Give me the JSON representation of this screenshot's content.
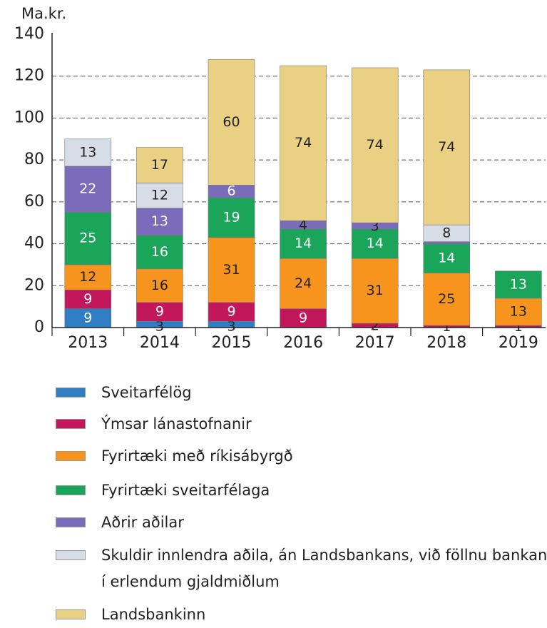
{
  "chart_data": {
    "type": "stacked_bar",
    "y_axis_label": "Ma.kr.",
    "categories": [
      "2013",
      "2014",
      "2015",
      "2016",
      "2017",
      "2018",
      "2019"
    ],
    "ylim": [
      0,
      140
    ],
    "yticks": [
      0,
      20,
      40,
      60,
      80,
      100,
      120,
      140
    ],
    "grid": true,
    "series": [
      {
        "name": "Sveitarfélög",
        "color": "#2f7dc3",
        "values": [
          9,
          3,
          3,
          0,
          0,
          0,
          0
        ],
        "value_labels": [
          "9",
          "3",
          "3",
          null,
          null,
          null,
          null
        ]
      },
      {
        "name": "Ýmsar lánastofnanir",
        "color": "#c2185b",
        "values": [
          9,
          9,
          9,
          9,
          2,
          1,
          1
        ],
        "value_labels": [
          "9",
          "9",
          "9",
          "9",
          "2",
          "1",
          "1"
        ]
      },
      {
        "name": "Fyrirtæki með ríkisábyrgð",
        "color": "#f7941d",
        "values": [
          12,
          16,
          31,
          24,
          31,
          25,
          13
        ],
        "value_labels": [
          "12",
          "16",
          "31",
          "24",
          "31",
          "25",
          "13"
        ]
      },
      {
        "name": "Fyrirtæki sveitarfélaga",
        "color": "#1aa55a",
        "values": [
          25,
          16,
          19,
          14,
          14,
          14,
          13
        ],
        "value_labels": [
          "25",
          "16",
          "19",
          "14",
          "14",
          "14",
          "13"
        ]
      },
      {
        "name": "Aðrir aðilar",
        "color": "#7a6cba",
        "values": [
          22,
          13,
          6,
          4,
          3,
          1,
          0
        ],
        "value_labels": [
          "22",
          "13",
          "6",
          "4",
          "3",
          null,
          null
        ]
      },
      {
        "name": "Skuldir innlendra aðila, án Landsbankans, við föllnu bankana í erlendum gjaldmiðlum",
        "color": "#d6dde7",
        "values": [
          13,
          12,
          0,
          0,
          0,
          8,
          0
        ],
        "value_labels": [
          "13",
          "12",
          null,
          null,
          null,
          "8",
          null
        ]
      },
      {
        "name": "Landsbankinn",
        "color": "#e9d083",
        "values": [
          0,
          17,
          60,
          74,
          74,
          74,
          0
        ],
        "value_labels": [
          null,
          "17",
          "60",
          "74",
          "74",
          "74",
          null
        ]
      }
    ]
  }
}
